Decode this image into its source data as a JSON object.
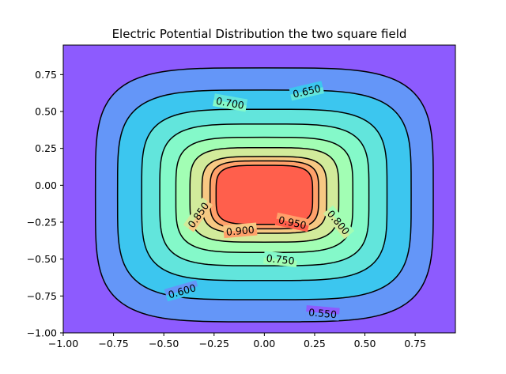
{
  "chart_data": {
    "type": "contour",
    "title": "Electric Potential Distribution the two square field",
    "xlabel": "",
    "ylabel": "",
    "xlim": [
      -1.0,
      0.95
    ],
    "ylim": [
      -1.0,
      0.95
    ],
    "grid": false,
    "colormap": "rainbow",
    "x_ticks": [
      -1.0,
      -0.75,
      -0.5,
      -0.25,
      0.0,
      0.25,
      0.5,
      0.75
    ],
    "x_tick_labels": [
      "−1.00",
      "−0.75",
      "−0.50",
      "−0.25",
      "0.00",
      "0.25",
      "0.50",
      "0.75"
    ],
    "y_ticks": [
      -1.0,
      -0.75,
      -0.5,
      -0.25,
      0.0,
      0.25,
      0.5,
      0.75
    ],
    "y_tick_labels": [
      "−1.00",
      "−0.75",
      "−0.50",
      "−0.25",
      "0.00",
      "0.25",
      "0.50",
      "0.75"
    ],
    "contour_levels": [
      0.55,
      0.6,
      0.65,
      0.7,
      0.75,
      0.8,
      0.85,
      0.9,
      0.95
    ],
    "contours": [
      {
        "level": 0.55,
        "label": "0.550",
        "half_width": 0.84,
        "half_height": 0.86,
        "center": [
          0.0,
          -0.065
        ],
        "color": "#6496f8"
      },
      {
        "level": 0.6,
        "label": "0.600",
        "half_width": 0.73,
        "half_height": 0.71,
        "center": [
          0.0,
          -0.065
        ],
        "color": "#3cc6ef"
      },
      {
        "level": 0.65,
        "label": "0.650",
        "half_width": 0.61,
        "half_height": 0.58,
        "center": [
          0.0,
          -0.065
        ],
        "color": "#62e5dc"
      },
      {
        "level": 0.7,
        "label": "0.700",
        "half_width": 0.52,
        "half_height": 0.48,
        "center": [
          0.0,
          -0.065
        ],
        "color": "#84f9c9"
      },
      {
        "level": 0.75,
        "label": "0.750",
        "half_width": 0.44,
        "half_height": 0.39,
        "center": [
          0.0,
          -0.065
        ],
        "color": "#a2feb4"
      },
      {
        "level": 0.8,
        "label": "0.800",
        "half_width": 0.37,
        "half_height": 0.32,
        "center": [
          0.0,
          -0.065
        ],
        "color": "#d2eb9b"
      },
      {
        "level": 0.85,
        "label": "0.850",
        "half_width": 0.31,
        "half_height": 0.26,
        "center": [
          0.0,
          -0.065
        ],
        "color": "#f7c883"
      },
      {
        "level": 0.9,
        "label": "0.900",
        "half_width": 0.27,
        "half_height": 0.23,
        "center": [
          0.0,
          -0.065
        ],
        "color": "#ffa06a"
      },
      {
        "level": 0.95,
        "label": "0.950",
        "half_width": 0.24,
        "half_height": 0.2,
        "center": [
          0.0,
          -0.065
        ],
        "color": "#ff5f4c"
      }
    ],
    "background_color": "#8d5bfe",
    "line_color": "#000000",
    "contour_labels": [
      {
        "text": "0.550",
        "x": 0.29,
        "y": -0.865,
        "angle": -5
      },
      {
        "text": "0.600",
        "x": -0.41,
        "y": -0.715,
        "angle": 16
      },
      {
        "text": "0.650",
        "x": 0.21,
        "y": 0.64,
        "angle": 13
      },
      {
        "text": "0.700",
        "x": -0.17,
        "y": 0.56,
        "angle": -10
      },
      {
        "text": "0.750",
        "x": 0.08,
        "y": -0.5,
        "angle": -6
      },
      {
        "text": "0.800",
        "x": 0.37,
        "y": -0.25,
        "angle": -50
      },
      {
        "text": "0.850",
        "x": -0.33,
        "y": -0.2,
        "angle": 55
      },
      {
        "text": "0.900",
        "x": -0.12,
        "y": -0.305,
        "angle": 5
      },
      {
        "text": "0.950",
        "x": 0.14,
        "y": -0.25,
        "angle": -12
      }
    ]
  }
}
